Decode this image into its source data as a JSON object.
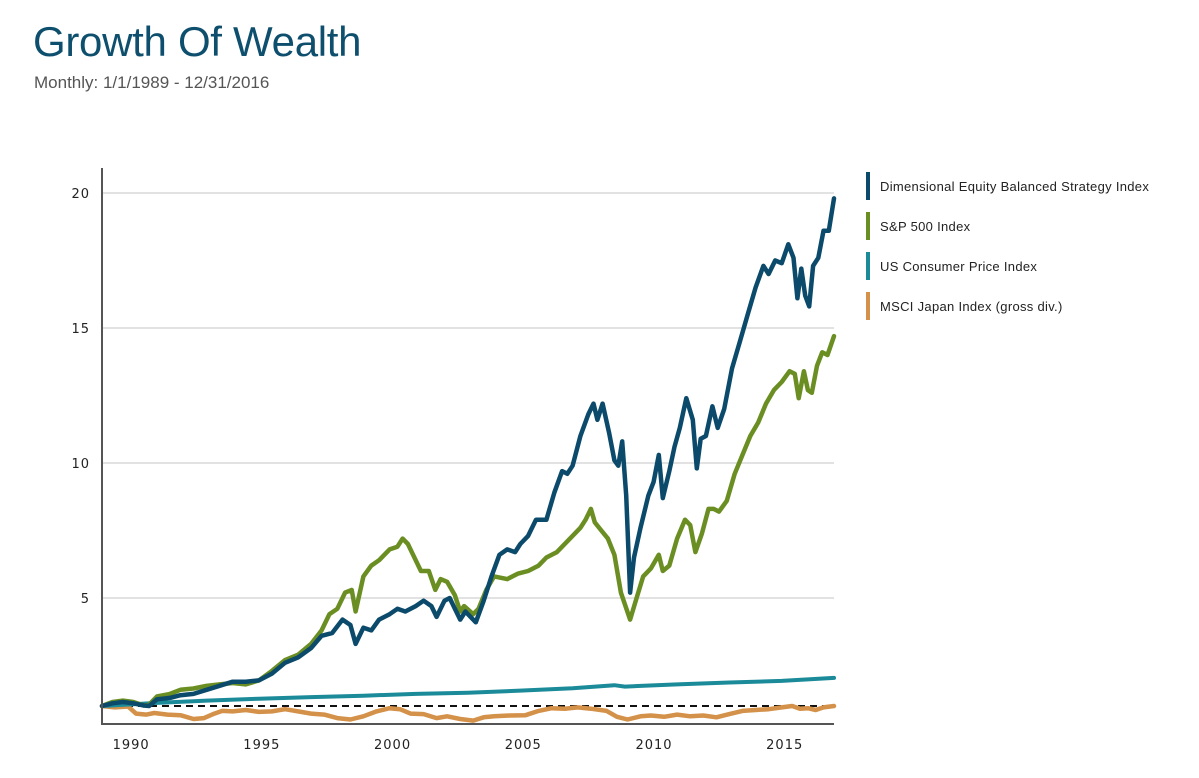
{
  "header": {
    "title": "Growth Of Wealth",
    "subtitle": "Monthly: 1/1/1989 - 12/31/2016"
  },
  "chart_data": {
    "type": "line",
    "title": "Growth Of Wealth",
    "subtitle": "Monthly: 1/1/1989 - 12/31/2016",
    "xlabel": "",
    "ylabel": "",
    "xlim": [
      1989.0,
      2017.0
    ],
    "ylim": [
      0.33,
      21.0
    ],
    "x_ticks": [
      1990,
      1995,
      2000,
      2005,
      2010,
      2015
    ],
    "x_tick_labels": [
      "1990",
      "1995",
      "2000",
      "2005",
      "2010",
      "2015"
    ],
    "y_ticks": [
      5,
      10,
      15,
      20
    ],
    "y_tick_labels": [
      "5",
      "10",
      "15",
      "20"
    ],
    "grid": "horizontal",
    "legend_position": "right",
    "reference_line": {
      "value": 1,
      "style": "dashed",
      "color": "#111111"
    },
    "series": [
      {
        "name": "Dimensional Equity Balanced Strategy Index",
        "color": "#0b4a6b",
        "points": [
          [
            1989.0,
            1.0
          ],
          [
            1989.4,
            1.1
          ],
          [
            1989.8,
            1.15
          ],
          [
            1990.2,
            1.1
          ],
          [
            1990.6,
            1.02
          ],
          [
            1990.8,
            1.0
          ],
          [
            1991.1,
            1.25
          ],
          [
            1991.6,
            1.3
          ],
          [
            1992.0,
            1.4
          ],
          [
            1992.5,
            1.45
          ],
          [
            1993.0,
            1.6
          ],
          [
            1993.5,
            1.75
          ],
          [
            1994.0,
            1.9
          ],
          [
            1994.5,
            1.9
          ],
          [
            1995.0,
            1.95
          ],
          [
            1995.5,
            2.2
          ],
          [
            1996.0,
            2.6
          ],
          [
            1996.5,
            2.8
          ],
          [
            1997.0,
            3.15
          ],
          [
            1997.4,
            3.6
          ],
          [
            1997.8,
            3.7
          ],
          [
            1998.2,
            4.2
          ],
          [
            1998.5,
            4.0
          ],
          [
            1998.7,
            3.3
          ],
          [
            1999.0,
            3.9
          ],
          [
            1999.3,
            3.8
          ],
          [
            1999.6,
            4.2
          ],
          [
            2000.0,
            4.4
          ],
          [
            2000.3,
            4.6
          ],
          [
            2000.6,
            4.5
          ],
          [
            2001.0,
            4.7
          ],
          [
            2001.3,
            4.9
          ],
          [
            2001.6,
            4.7
          ],
          [
            2001.8,
            4.3
          ],
          [
            2002.1,
            4.9
          ],
          [
            2002.3,
            5.0
          ],
          [
            2002.5,
            4.6
          ],
          [
            2002.7,
            4.2
          ],
          [
            2002.9,
            4.5
          ],
          [
            2003.1,
            4.3
          ],
          [
            2003.3,
            4.1
          ],
          [
            2003.6,
            4.9
          ],
          [
            2003.9,
            5.8
          ],
          [
            2004.2,
            6.6
          ],
          [
            2004.5,
            6.8
          ],
          [
            2004.8,
            6.7
          ],
          [
            2005.0,
            7.0
          ],
          [
            2005.3,
            7.3
          ],
          [
            2005.6,
            7.9
          ],
          [
            2006.0,
            7.9
          ],
          [
            2006.3,
            8.9
          ],
          [
            2006.6,
            9.7
          ],
          [
            2006.8,
            9.6
          ],
          [
            2007.0,
            9.9
          ],
          [
            2007.3,
            11.0
          ],
          [
            2007.6,
            11.8
          ],
          [
            2007.8,
            12.2
          ],
          [
            2007.95,
            11.6
          ],
          [
            2008.15,
            12.2
          ],
          [
            2008.4,
            11.1
          ],
          [
            2008.6,
            10.1
          ],
          [
            2008.75,
            9.9
          ],
          [
            2008.9,
            10.8
          ],
          [
            2009.05,
            8.8
          ],
          [
            2009.2,
            5.2
          ],
          [
            2009.35,
            6.5
          ],
          [
            2009.6,
            7.6
          ],
          [
            2009.9,
            8.8
          ],
          [
            2010.1,
            9.3
          ],
          [
            2010.3,
            10.3
          ],
          [
            2010.45,
            8.7
          ],
          [
            2010.7,
            9.7
          ],
          [
            2010.9,
            10.6
          ],
          [
            2011.1,
            11.3
          ],
          [
            2011.35,
            12.4
          ],
          [
            2011.6,
            11.6
          ],
          [
            2011.75,
            9.8
          ],
          [
            2011.9,
            10.9
          ],
          [
            2012.1,
            11.0
          ],
          [
            2012.35,
            12.1
          ],
          [
            2012.55,
            11.3
          ],
          [
            2012.8,
            12.0
          ],
          [
            2013.1,
            13.5
          ],
          [
            2013.4,
            14.5
          ],
          [
            2013.7,
            15.5
          ],
          [
            2014.0,
            16.5
          ],
          [
            2014.3,
            17.3
          ],
          [
            2014.5,
            17.0
          ],
          [
            2014.75,
            17.5
          ],
          [
            2015.0,
            17.4
          ],
          [
            2015.25,
            18.1
          ],
          [
            2015.45,
            17.6
          ],
          [
            2015.6,
            16.1
          ],
          [
            2015.75,
            17.2
          ],
          [
            2015.9,
            16.2
          ],
          [
            2016.05,
            15.8
          ],
          [
            2016.2,
            17.3
          ],
          [
            2016.4,
            17.6
          ],
          [
            2016.6,
            18.6
          ],
          [
            2016.8,
            18.6
          ],
          [
            2017.0,
            19.8
          ]
        ]
      },
      {
        "name": "S&P 500 Index",
        "color": "#6b8e23",
        "points": [
          [
            1989.0,
            1.0
          ],
          [
            1989.4,
            1.15
          ],
          [
            1989.8,
            1.2
          ],
          [
            1990.2,
            1.15
          ],
          [
            1990.6,
            1.02
          ],
          [
            1990.8,
            1.05
          ],
          [
            1991.1,
            1.35
          ],
          [
            1991.6,
            1.45
          ],
          [
            1992.0,
            1.6
          ],
          [
            1992.5,
            1.65
          ],
          [
            1993.0,
            1.75
          ],
          [
            1993.5,
            1.8
          ],
          [
            1994.0,
            1.85
          ],
          [
            1994.5,
            1.8
          ],
          [
            1995.0,
            1.95
          ],
          [
            1995.5,
            2.3
          ],
          [
            1996.0,
            2.7
          ],
          [
            1996.5,
            2.9
          ],
          [
            1997.0,
            3.3
          ],
          [
            1997.4,
            3.8
          ],
          [
            1997.7,
            4.4
          ],
          [
            1998.0,
            4.6
          ],
          [
            1998.3,
            5.2
          ],
          [
            1998.55,
            5.3
          ],
          [
            1998.7,
            4.5
          ],
          [
            1999.0,
            5.8
          ],
          [
            1999.3,
            6.2
          ],
          [
            1999.6,
            6.4
          ],
          [
            2000.0,
            6.8
          ],
          [
            2000.3,
            6.9
          ],
          [
            2000.5,
            7.2
          ],
          [
            2000.7,
            7.0
          ],
          [
            2000.9,
            6.6
          ],
          [
            2001.2,
            6.0
          ],
          [
            2001.5,
            6.0
          ],
          [
            2001.75,
            5.3
          ],
          [
            2001.95,
            5.7
          ],
          [
            2002.2,
            5.6
          ],
          [
            2002.5,
            5.1
          ],
          [
            2002.7,
            4.5
          ],
          [
            2002.85,
            4.7
          ],
          [
            2003.2,
            4.4
          ],
          [
            2003.4,
            4.6
          ],
          [
            2003.7,
            5.3
          ],
          [
            2004.0,
            5.8
          ],
          [
            2004.5,
            5.7
          ],
          [
            2004.9,
            5.9
          ],
          [
            2005.3,
            6.0
          ],
          [
            2005.7,
            6.2
          ],
          [
            2006.0,
            6.5
          ],
          [
            2006.4,
            6.7
          ],
          [
            2006.9,
            7.2
          ],
          [
            2007.3,
            7.6
          ],
          [
            2007.5,
            7.9
          ],
          [
            2007.7,
            8.3
          ],
          [
            2007.85,
            7.8
          ],
          [
            2008.1,
            7.5
          ],
          [
            2008.35,
            7.2
          ],
          [
            2008.6,
            6.6
          ],
          [
            2008.85,
            5.2
          ],
          [
            2009.2,
            4.2
          ],
          [
            2009.45,
            5.0
          ],
          [
            2009.7,
            5.8
          ],
          [
            2010.0,
            6.1
          ],
          [
            2010.3,
            6.6
          ],
          [
            2010.45,
            6.0
          ],
          [
            2010.7,
            6.2
          ],
          [
            2011.0,
            7.2
          ],
          [
            2011.3,
            7.9
          ],
          [
            2011.5,
            7.7
          ],
          [
            2011.7,
            6.7
          ],
          [
            2011.95,
            7.4
          ],
          [
            2012.2,
            8.3
          ],
          [
            2012.4,
            8.3
          ],
          [
            2012.6,
            8.2
          ],
          [
            2012.9,
            8.6
          ],
          [
            2013.2,
            9.6
          ],
          [
            2013.5,
            10.3
          ],
          [
            2013.8,
            11.0
          ],
          [
            2014.1,
            11.5
          ],
          [
            2014.4,
            12.2
          ],
          [
            2014.7,
            12.7
          ],
          [
            2015.0,
            13.0
          ],
          [
            2015.3,
            13.4
          ],
          [
            2015.5,
            13.3
          ],
          [
            2015.65,
            12.4
          ],
          [
            2015.85,
            13.4
          ],
          [
            2016.0,
            12.7
          ],
          [
            2016.15,
            12.6
          ],
          [
            2016.35,
            13.6
          ],
          [
            2016.55,
            14.1
          ],
          [
            2016.75,
            14.0
          ],
          [
            2017.0,
            14.7
          ]
        ]
      },
      {
        "name": "US Consumer Price Index",
        "color": "#1b8a99",
        "points": [
          [
            1989.0,
            1.0
          ],
          [
            1991.0,
            1.11
          ],
          [
            1993.0,
            1.2
          ],
          [
            1995.0,
            1.27
          ],
          [
            1997.0,
            1.33
          ],
          [
            1999.0,
            1.38
          ],
          [
            2001.0,
            1.45
          ],
          [
            2003.0,
            1.49
          ],
          [
            2005.0,
            1.57
          ],
          [
            2007.0,
            1.66
          ],
          [
            2008.6,
            1.77
          ],
          [
            2009.0,
            1.72
          ],
          [
            2009.5,
            1.74
          ],
          [
            2011.0,
            1.8
          ],
          [
            2013.0,
            1.87
          ],
          [
            2015.0,
            1.93
          ],
          [
            2017.0,
            2.04
          ]
        ]
      },
      {
        "name": "MSCI Japan Index (gross div.)",
        "color": "#d4914a",
        "points": [
          [
            1989.0,
            1.0
          ],
          [
            1989.5,
            0.95
          ],
          [
            1990.0,
            0.98
          ],
          [
            1990.3,
            0.72
          ],
          [
            1990.7,
            0.68
          ],
          [
            1991.0,
            0.74
          ],
          [
            1991.5,
            0.68
          ],
          [
            1992.0,
            0.66
          ],
          [
            1992.5,
            0.52
          ],
          [
            1992.9,
            0.55
          ],
          [
            1993.3,
            0.72
          ],
          [
            1993.6,
            0.82
          ],
          [
            1994.0,
            0.8
          ],
          [
            1994.5,
            0.85
          ],
          [
            1995.0,
            0.78
          ],
          [
            1995.5,
            0.8
          ],
          [
            1996.0,
            0.88
          ],
          [
            1996.5,
            0.8
          ],
          [
            1997.0,
            0.72
          ],
          [
            1997.5,
            0.68
          ],
          [
            1998.0,
            0.55
          ],
          [
            1998.5,
            0.5
          ],
          [
            1999.0,
            0.62
          ],
          [
            1999.5,
            0.8
          ],
          [
            2000.0,
            0.92
          ],
          [
            2000.4,
            0.88
          ],
          [
            2000.8,
            0.72
          ],
          [
            2001.3,
            0.7
          ],
          [
            2001.8,
            0.55
          ],
          [
            2002.2,
            0.62
          ],
          [
            2002.7,
            0.52
          ],
          [
            2003.2,
            0.46
          ],
          [
            2003.6,
            0.58
          ],
          [
            2004.0,
            0.62
          ],
          [
            2004.6,
            0.65
          ],
          [
            2005.2,
            0.66
          ],
          [
            2005.7,
            0.82
          ],
          [
            2006.2,
            0.92
          ],
          [
            2006.7,
            0.9
          ],
          [
            2007.2,
            0.95
          ],
          [
            2007.7,
            0.9
          ],
          [
            2008.3,
            0.82
          ],
          [
            2008.7,
            0.6
          ],
          [
            2009.1,
            0.5
          ],
          [
            2009.6,
            0.62
          ],
          [
            2010.0,
            0.65
          ],
          [
            2010.5,
            0.6
          ],
          [
            2011.0,
            0.68
          ],
          [
            2011.5,
            0.62
          ],
          [
            2012.0,
            0.65
          ],
          [
            2012.5,
            0.58
          ],
          [
            2013.0,
            0.7
          ],
          [
            2013.5,
            0.82
          ],
          [
            2014.0,
            0.85
          ],
          [
            2014.5,
            0.88
          ],
          [
            2015.0,
            0.95
          ],
          [
            2015.4,
            1.0
          ],
          [
            2015.7,
            0.9
          ],
          [
            2016.0,
            0.92
          ],
          [
            2016.3,
            0.85
          ],
          [
            2016.6,
            0.95
          ],
          [
            2017.0,
            1.0
          ]
        ]
      }
    ]
  },
  "legend": {
    "items": [
      {
        "label": "Dimensional Equity Balanced Strategy Index",
        "color": "#0b4a6b"
      },
      {
        "label": "S&P 500 Index",
        "color": "#6b8e23"
      },
      {
        "label": "US Consumer Price Index",
        "color": "#1b8a99"
      },
      {
        "label": "MSCI Japan Index (gross div.)",
        "color": "#d4914a"
      }
    ]
  }
}
